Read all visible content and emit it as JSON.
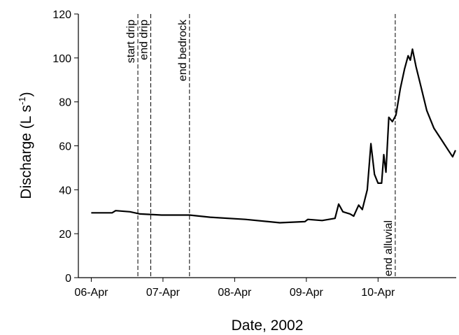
{
  "chart_data": {
    "type": "line",
    "xlabel": "Date, 2002",
    "ylabel": {
      "text": "Discharge (L s",
      "sup": "-1",
      "tail": ")"
    },
    "xlim": [
      -0.18,
      5.09
    ],
    "ylim": [
      0,
      120
    ],
    "xticks": [
      {
        "value": 0,
        "label": "06-Apr"
      },
      {
        "value": 1,
        "label": "07-Apr"
      },
      {
        "value": 2,
        "label": "08-Apr"
      },
      {
        "value": 3,
        "label": "09-Apr"
      },
      {
        "value": 4,
        "label": "10-Apr"
      }
    ],
    "yticks": [
      0,
      20,
      40,
      60,
      80,
      100,
      120
    ],
    "series": [
      {
        "color": "#000000",
        "x": [
          0,
          0.29,
          0.34,
          0.54,
          0.68,
          0.98,
          1.37,
          1.66,
          2.15,
          2.63,
          2.98,
          3.02,
          3.22,
          3.4,
          3.45,
          3.51,
          3.61,
          3.66,
          3.73,
          3.78,
          3.85,
          3.9,
          3.95,
          4.0,
          4.05,
          4.08,
          4.11,
          4.15,
          4.2,
          4.25,
          4.31,
          4.37,
          4.42,
          4.45,
          4.48,
          4.53,
          4.59,
          4.68,
          4.78,
          4.88,
          4.98,
          5.04,
          5.08
        ],
        "values": [
          29.5,
          29.5,
          30.5,
          30,
          29,
          28.5,
          28.5,
          27.5,
          26.5,
          25,
          25.5,
          26.5,
          26,
          27,
          33.5,
          30,
          29,
          28,
          33,
          31,
          40,
          61,
          47,
          43,
          43,
          56,
          48,
          73,
          71,
          74,
          86,
          95,
          101,
          99,
          104,
          96,
          88,
          76,
          68,
          63,
          58,
          55,
          58
        ]
      }
    ],
    "annotations": [
      {
        "text": "start drip",
        "x": 0.65,
        "side": "top"
      },
      {
        "text": "end drip",
        "x": 0.83,
        "side": "top"
      },
      {
        "text": "end bedrock",
        "x": 1.37,
        "side": "top"
      },
      {
        "text": "end alluvial",
        "x": 4.24,
        "side": "bottom"
      }
    ]
  }
}
